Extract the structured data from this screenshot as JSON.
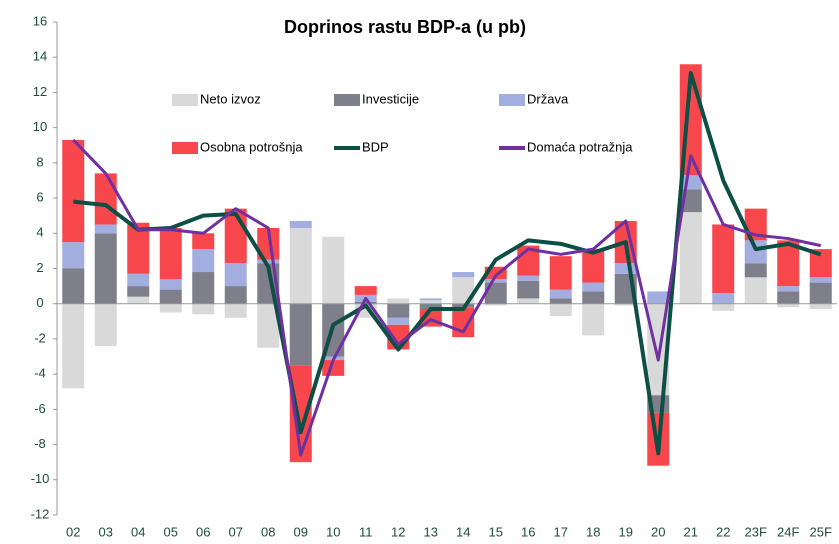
{
  "chart_data": {
    "type": "bar",
    "stacked": true,
    "title": "Doprinos rastu BDP-a (u pb)",
    "categories": [
      "02",
      "03",
      "04",
      "05",
      "06",
      "07",
      "08",
      "09",
      "10",
      "11",
      "12",
      "13",
      "14",
      "15",
      "16",
      "17",
      "18",
      "19",
      "20",
      "21",
      "22",
      "23F",
      "24F",
      "25F"
    ],
    "series": [
      {
        "name": "Neto izvoz",
        "type": "bar",
        "color": "#d9d9d9",
        "values": [
          -4.8,
          -2.4,
          0.4,
          -0.5,
          -0.6,
          -0.8,
          -2.5,
          4.3,
          3.8,
          -0.8,
          0.3,
          0.2,
          1.5,
          -0.1,
          0.3,
          -0.7,
          -1.8,
          -0.1,
          -5.2,
          5.2,
          -0.4,
          1.5,
          -0.2,
          -0.3
        ]
      },
      {
        "name": "Investicije",
        "type": "bar",
        "color": "#7f7f8c",
        "values": [
          2.0,
          4.0,
          0.6,
          0.8,
          1.8,
          1.0,
          2.3,
          -3.5,
          -3.0,
          0.1,
          -0.8,
          -0.3,
          -0.2,
          1.2,
          1.0,
          0.3,
          0.7,
          1.7,
          -1.0,
          1.3,
          0.0,
          0.8,
          0.7,
          1.2
        ]
      },
      {
        "name": "Država",
        "type": "bar",
        "color": "#a3aee0",
        "values": [
          1.5,
          0.5,
          0.7,
          0.6,
          1.3,
          1.3,
          0.2,
          0.4,
          -0.2,
          0.4,
          -0.4,
          0.1,
          0.3,
          0.2,
          0.3,
          0.5,
          0.5,
          0.6,
          0.7,
          0.8,
          0.6,
          1.3,
          0.3,
          0.3
        ]
      },
      {
        "name": "Osobna potrošnja",
        "type": "bar",
        "color": "#f7474d",
        "values": [
          5.8,
          2.9,
          2.9,
          2.9,
          0.9,
          3.1,
          1.8,
          -5.5,
          -0.9,
          0.5,
          -1.4,
          -1.0,
          -1.7,
          0.7,
          1.7,
          1.9,
          1.9,
          2.4,
          -3.0,
          6.3,
          3.9,
          1.8,
          2.6,
          1.6
        ]
      },
      {
        "name": "BDP",
        "type": "line",
        "color": "#0d4f45",
        "values": [
          5.8,
          5.6,
          4.2,
          4.3,
          5.0,
          5.1,
          2.1,
          -7.3,
          -1.2,
          -0.1,
          -2.6,
          -0.3,
          -0.3,
          2.5,
          3.6,
          3.4,
          2.9,
          3.5,
          -8.5,
          13.1,
          7.0,
          3.1,
          3.4,
          2.8
        ]
      },
      {
        "name": "Domaća potražnja",
        "type": "line",
        "color": "#7030a0",
        "values": [
          9.3,
          7.4,
          4.2,
          4.2,
          4.0,
          5.4,
          4.3,
          -8.6,
          -3.2,
          0.3,
          -2.3,
          -0.9,
          -1.6,
          1.6,
          3.1,
          2.8,
          3.1,
          4.7,
          -3.2,
          8.4,
          4.5,
          3.9,
          3.7,
          3.3
        ]
      }
    ],
    "ylim": [
      -12,
      16
    ],
    "yticks": [
      -12,
      -10,
      -8,
      -6,
      -4,
      -2,
      0,
      2,
      4,
      6,
      8,
      10,
      12,
      14,
      16
    ]
  }
}
